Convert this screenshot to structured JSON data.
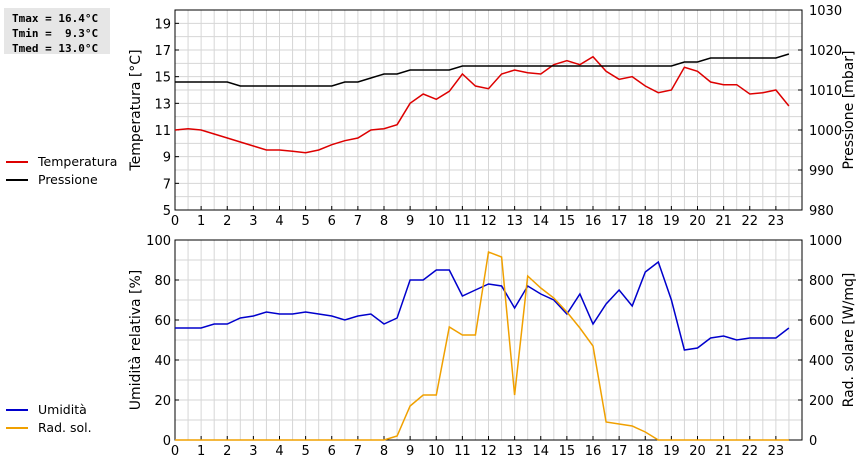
{
  "stats": {
    "tmax": "Tmax = 16.4°C",
    "tmin": "Tmin =  9.3°C",
    "tmed": "Tmed = 13.0°C"
  },
  "chart_data": [
    {
      "type": "line",
      "x_ticks": [
        "0",
        "1",
        "2",
        "3",
        "4",
        "5",
        "6",
        "7",
        "8",
        "9",
        "10",
        "11",
        "12",
        "13",
        "14",
        "15",
        "16",
        "17",
        "18",
        "19",
        "20",
        "21",
        "22",
        "23"
      ],
      "xlim": [
        0,
        24
      ],
      "ylabel": "Temperatura [°C]",
      "ylim": [
        5,
        20
      ],
      "y_ticks": [
        5,
        7,
        9,
        11,
        13,
        15,
        17,
        19
      ],
      "y2label": "Pressione [mbar]",
      "y2lim": [
        980,
        1030
      ],
      "y2_ticks": [
        980,
        990,
        1000,
        1010,
        1020,
        1030
      ],
      "grid": true,
      "legend_position": "left",
      "series": [
        {
          "name": "Temperatura",
          "axis": "left",
          "color": "#dd0000",
          "x": [
            0,
            0.5,
            1,
            1.5,
            2,
            2.5,
            3,
            3.5,
            4,
            4.5,
            5,
            5.5,
            6,
            6.5,
            7,
            7.5,
            8,
            8.5,
            9,
            9.5,
            10,
            10.5,
            11,
            11.5,
            12,
            12.5,
            13,
            13.5,
            14,
            14.5,
            15,
            15.5,
            16,
            16.5,
            17,
            17.5,
            18,
            18.5,
            19,
            19.5,
            20,
            20.5,
            21,
            21.5,
            22,
            22.5,
            23,
            23.5
          ],
          "values": [
            11.0,
            11.1,
            11.0,
            10.7,
            10.4,
            10.1,
            9.8,
            9.5,
            9.5,
            9.4,
            9.3,
            9.5,
            9.9,
            10.2,
            10.4,
            11.0,
            11.1,
            11.4,
            13.0,
            13.7,
            13.3,
            13.9,
            15.2,
            14.3,
            14.1,
            15.2,
            15.5,
            15.3,
            15.2,
            15.9,
            16.2,
            15.9,
            16.5,
            15.4,
            14.8,
            15.0,
            14.3,
            13.8,
            14.0,
            15.7,
            15.4,
            14.6,
            14.4,
            14.4,
            13.7,
            13.8,
            14.0,
            12.8
          ]
        },
        {
          "name": "Pressione",
          "axis": "right",
          "color": "#000000",
          "x": [
            0,
            0.5,
            1,
            1.5,
            2,
            2.5,
            3,
            3.5,
            4,
            4.5,
            5,
            5.5,
            6,
            6.5,
            7,
            7.5,
            8,
            8.5,
            9,
            9.5,
            10,
            10.5,
            11,
            11.5,
            12,
            12.5,
            13,
            13.5,
            14,
            14.5,
            15,
            15.5,
            16,
            16.5,
            17,
            17.5,
            18,
            18.5,
            19,
            19.5,
            20,
            20.5,
            21,
            21.5,
            22,
            22.5,
            23,
            23.5
          ],
          "values": [
            1012,
            1012,
            1012,
            1012,
            1012,
            1011,
            1011,
            1011,
            1011,
            1011,
            1011,
            1011,
            1011,
            1012,
            1012,
            1013,
            1014,
            1014,
            1015,
            1015,
            1015,
            1015,
            1016,
            1016,
            1016,
            1016,
            1016,
            1016,
            1016,
            1016,
            1016,
            1016,
            1016,
            1016,
            1016,
            1016,
            1016,
            1016,
            1016,
            1017,
            1017,
            1018,
            1018,
            1018,
            1018,
            1018,
            1018,
            1019
          ]
        }
      ]
    },
    {
      "type": "line",
      "x_ticks": [
        "0",
        "1",
        "2",
        "3",
        "4",
        "5",
        "6",
        "7",
        "8",
        "9",
        "10",
        "11",
        "12",
        "13",
        "14",
        "15",
        "16",
        "17",
        "18",
        "19",
        "20",
        "21",
        "22",
        "23"
      ],
      "xlim": [
        0,
        24
      ],
      "ylabel": "Umidità relativa [%]",
      "ylim": [
        0,
        100
      ],
      "y_ticks": [
        0,
        20,
        40,
        60,
        80,
        100
      ],
      "y2label": "Rad. solare [W/mq]",
      "y2lim": [
        0,
        1000
      ],
      "y2_ticks": [
        0,
        200,
        400,
        600,
        800,
        1000
      ],
      "grid": true,
      "legend_position": "left",
      "series": [
        {
          "name": "Umidità",
          "axis": "left",
          "color": "#0000cc",
          "x": [
            0,
            0.5,
            1,
            1.5,
            2,
            2.5,
            3,
            3.5,
            4,
            4.5,
            5,
            5.5,
            6,
            6.5,
            7,
            7.5,
            8,
            8.5,
            9,
            9.5,
            10,
            10.5,
            11,
            11.5,
            12,
            12.5,
            13,
            13.5,
            14,
            14.5,
            15,
            15.5,
            16,
            16.5,
            17,
            17.5,
            18,
            18.5,
            19,
            19.5,
            20,
            20.5,
            21,
            21.5,
            22,
            22.5,
            23,
            23.5
          ],
          "values": [
            56,
            56,
            56,
            58,
            58,
            61,
            62,
            64,
            63,
            63,
            64,
            63,
            62,
            60,
            62,
            63,
            58,
            61,
            80,
            80,
            85,
            85,
            72,
            75,
            78,
            77,
            66,
            77,
            73,
            70,
            63,
            73,
            58,
            68,
            75,
            67,
            84,
            89,
            70,
            45,
            46,
            51,
            52,
            50,
            51,
            51,
            51,
            56
          ]
        },
        {
          "name": "Rad. sol.",
          "axis": "right",
          "color": "#f0a000",
          "x": [
            0,
            0.5,
            1,
            1.5,
            2,
            2.5,
            3,
            3.5,
            4,
            4.5,
            5,
            5.5,
            6,
            6.5,
            7,
            7.5,
            8,
            8.5,
            9,
            9.5,
            10,
            10.5,
            11,
            11.5,
            12,
            12.5,
            13,
            13.5,
            14,
            14.5,
            15,
            15.5,
            16,
            16.5,
            17,
            17.5,
            18,
            18.5,
            19,
            19.5,
            20,
            20.5,
            21,
            21.5,
            22,
            22.5,
            23,
            23.5
          ],
          "values": [
            0,
            0,
            0,
            0,
            0,
            0,
            0,
            0,
            0,
            0,
            0,
            0,
            0,
            0,
            0,
            0,
            0,
            20,
            170,
            225,
            225,
            565,
            525,
            525,
            940,
            915,
            225,
            820,
            760,
            710,
            640,
            560,
            470,
            90,
            80,
            70,
            40,
            0,
            0,
            0,
            0,
            0,
            0,
            0,
            0,
            0,
            0,
            0
          ]
        }
      ]
    }
  ]
}
